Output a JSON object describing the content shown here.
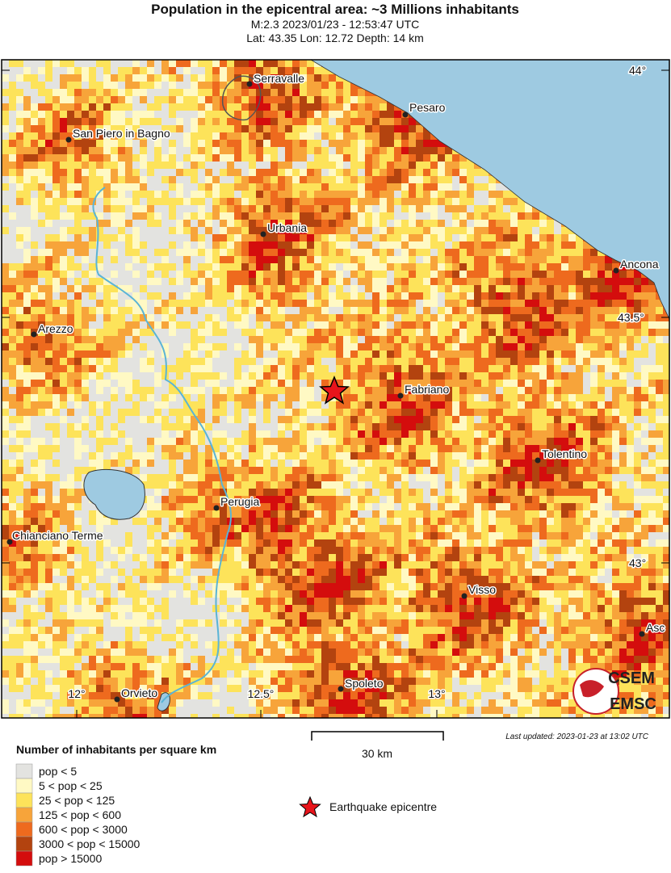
{
  "header": {
    "title": "Population in the epicentral area: ~3 Millions inhabitants",
    "lines": [
      "M:2.3 2023/01/23 - 12:53:47 UTC",
      "Lat: 43.35 Lon: 12.72 Depth: 14 km"
    ]
  },
  "map": {
    "cities": [
      "Serravalle",
      "Pesaro",
      "San Piero in Bagno",
      "Urbania",
      "Ancona",
      "Arezzo",
      "Fabriano",
      "Tolentino",
      "Perugia",
      "Chianciano Terme",
      "Visso",
      "Asc",
      "Spoleto",
      "Orvieto"
    ],
    "lat_labels": [
      "44°",
      "43.5°",
      "43°"
    ],
    "lon_labels": [
      "12°",
      "12.5°",
      "13°"
    ],
    "scale_label": "30 km",
    "last_updated": "Last updated: 2023-01-23 at 13:02 UTC",
    "logo": [
      "CSEM",
      "EMSC"
    ]
  },
  "legend": {
    "title": "Number of inhabitants per square km",
    "items": [
      {
        "label": "pop < 5",
        "color": "#e3e3e0"
      },
      {
        "label": "5 < pop < 25",
        "color": "#fff9c4"
      },
      {
        "label": "25 < pop < 125",
        "color": "#fde35a"
      },
      {
        "label": "125 < pop < 600",
        "color": "#f7a43a"
      },
      {
        "label": "600 < pop < 3000",
        "color": "#ee6a1e"
      },
      {
        "label": "3000 < pop < 15000",
        "color": "#b3430f"
      },
      {
        "label": "pop > 15000",
        "color": "#d40d0d"
      }
    ],
    "epicentre": "Earthquake epicentre"
  }
}
